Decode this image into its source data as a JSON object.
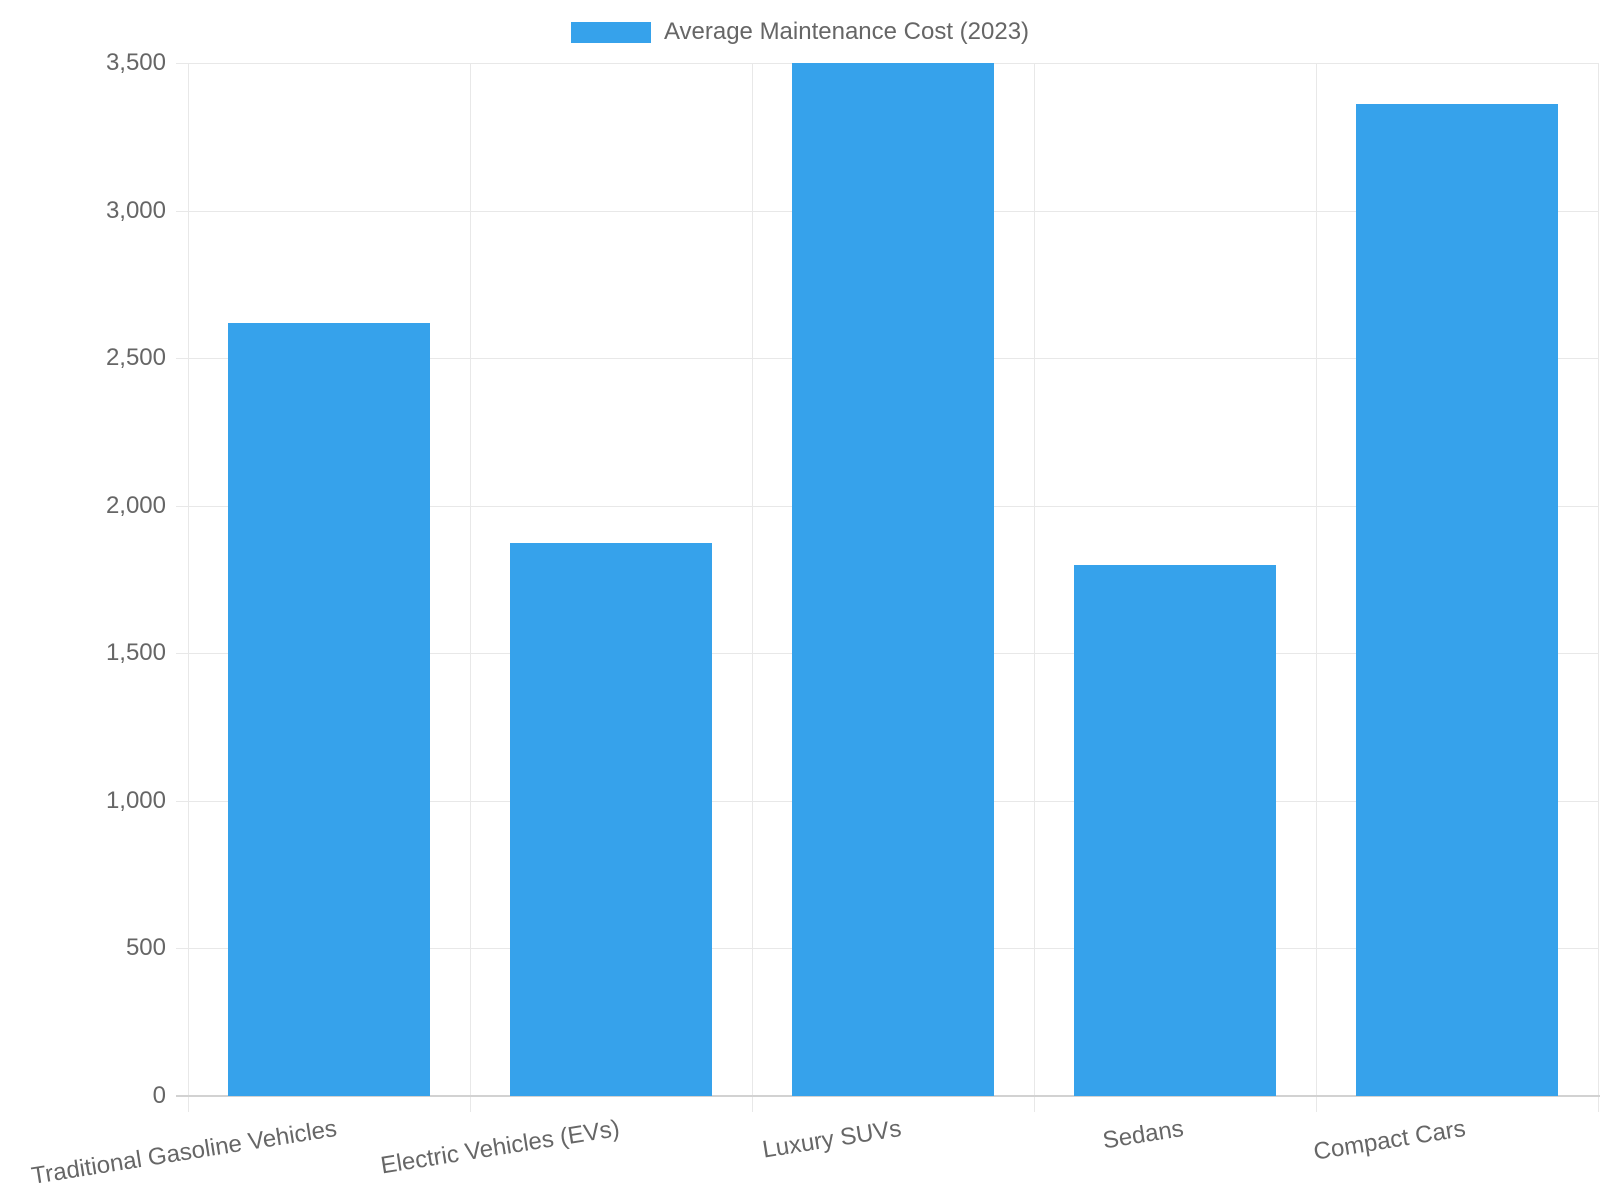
{
  "colors": {
    "bar": "#36A2EB",
    "grid": "#E8E8E8",
    "axis_line": "#D2D2D2",
    "text": "#666666",
    "background": "#FFFFFF"
  },
  "legend": {
    "label": "Average Maintenance Cost (2023)"
  },
  "chart_data": {
    "type": "bar",
    "title": "",
    "categories": [
      "Traditional Gasoline Vehicles",
      "Electric Vehicles (EVs)",
      "Luxury SUVs",
      "Sedans",
      "Compact Cars"
    ],
    "series": [
      {
        "name": "Average Maintenance Cost (2023)",
        "values": [
          2620,
          1875,
          3500,
          1800,
          3360
        ]
      }
    ],
    "xlabel": "",
    "ylabel": "",
    "ylim": [
      0,
      3500
    ],
    "ytick_step": 500,
    "yticks": [
      0,
      500,
      1000,
      1500,
      2000,
      2500,
      3000,
      3500
    ],
    "ytick_labels": [
      "0",
      "500",
      "1,000",
      "1,500",
      "2,000",
      "2,500",
      "3,000",
      "3,500"
    ],
    "grid": true,
    "legend_position": "top-center",
    "x_label_rotation_deg": -9
  }
}
